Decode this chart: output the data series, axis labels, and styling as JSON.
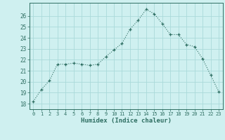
{
  "x": [
    0,
    1,
    2,
    3,
    4,
    5,
    6,
    7,
    8,
    9,
    10,
    11,
    12,
    13,
    14,
    15,
    16,
    17,
    18,
    19,
    20,
    21,
    22,
    23
  ],
  "y": [
    18.2,
    19.3,
    20.1,
    21.6,
    21.6,
    21.7,
    21.6,
    21.5,
    21.6,
    22.3,
    22.9,
    23.5,
    24.8,
    25.6,
    26.6,
    26.2,
    25.3,
    24.3,
    24.3,
    23.4,
    23.2,
    22.1,
    20.6,
    19.1
  ],
  "xlabel": "Humidex (Indice chaleur)",
  "ylim": [
    17.5,
    27.2
  ],
  "xlim": [
    -0.5,
    23.5
  ],
  "bg_color": "#cff0f0",
  "grid_color": "#aadada",
  "line_color": "#2e6e62",
  "yticks": [
    18,
    19,
    20,
    21,
    22,
    23,
    24,
    25,
    26
  ],
  "xtick_labels": [
    "0",
    "1",
    "2",
    "3",
    "4",
    "5",
    "6",
    "7",
    "8",
    "9",
    "10",
    "11",
    "12",
    "13",
    "14",
    "15",
    "16",
    "17",
    "18",
    "19",
    "20",
    "21",
    "22",
    "23"
  ]
}
